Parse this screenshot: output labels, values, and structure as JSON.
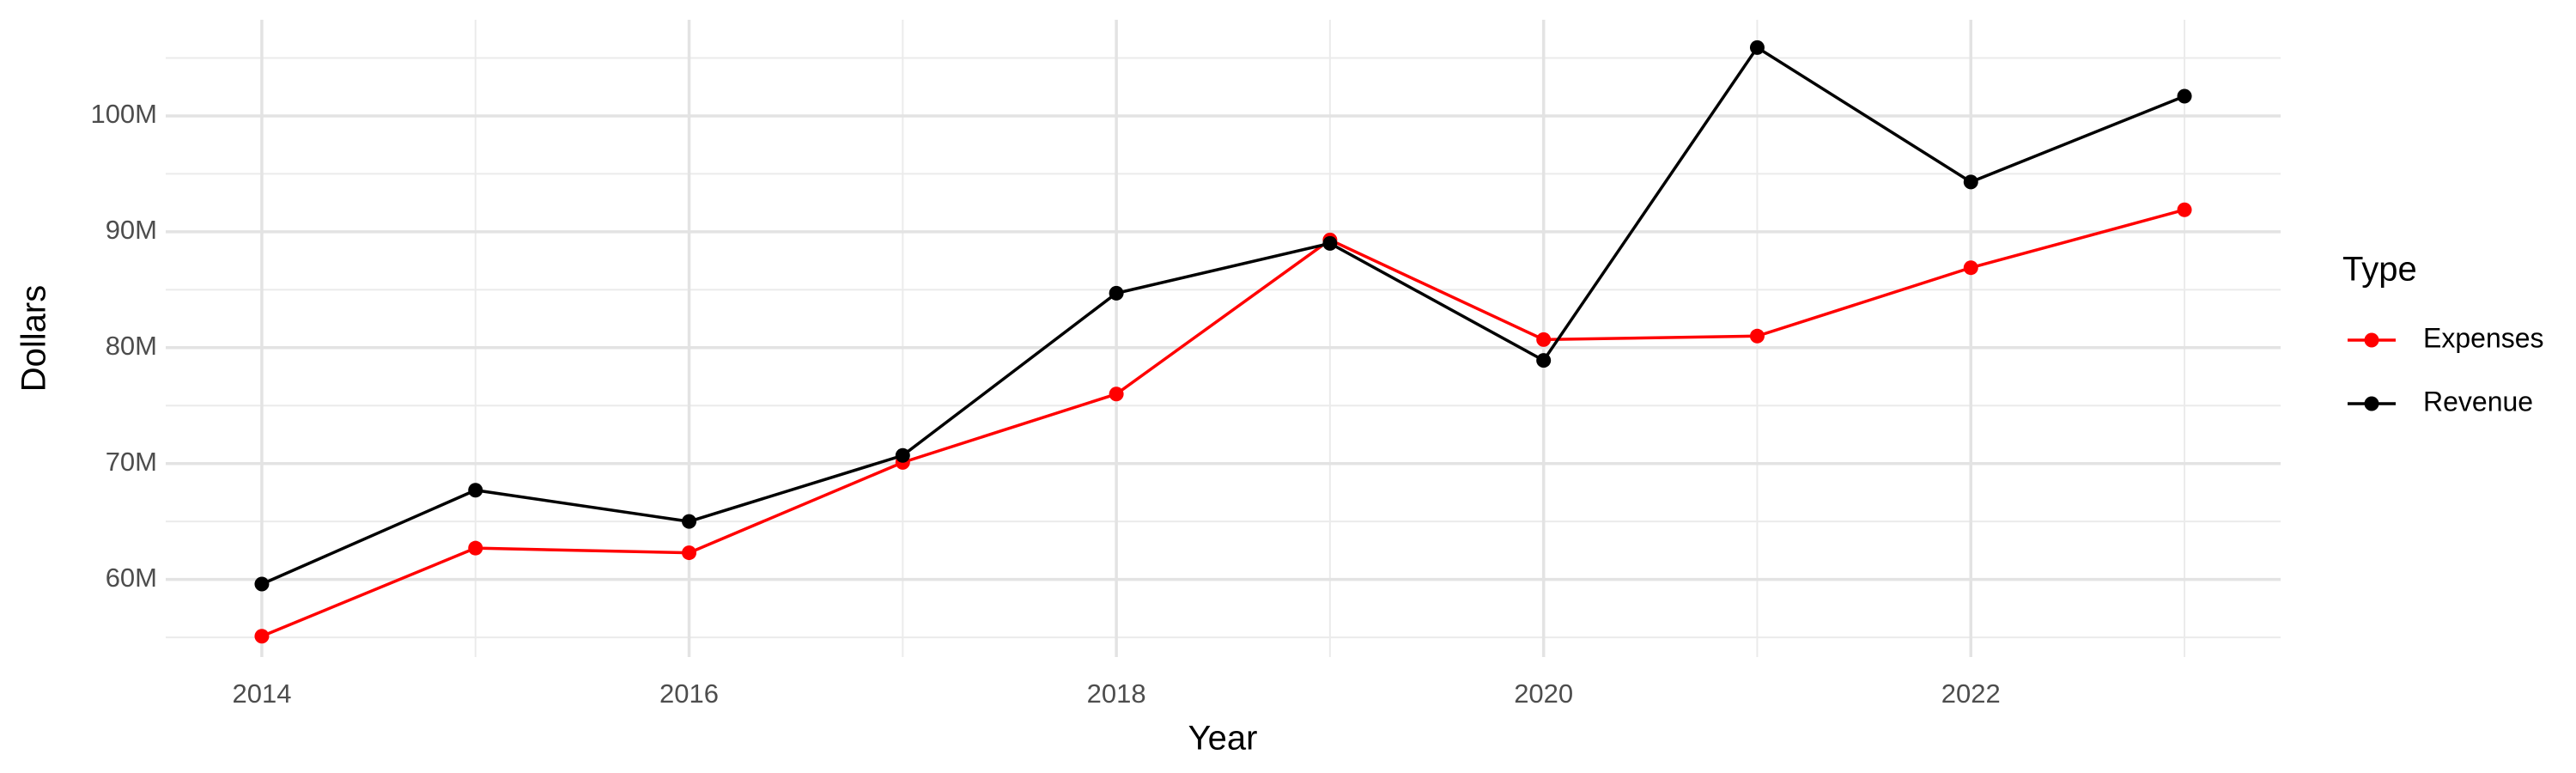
{
  "chart_data": {
    "type": "line",
    "x_label": "Year",
    "y_label": "Dollars",
    "legend_title": "Type",
    "legend_position": "right",
    "grid": true,
    "x": [
      2014,
      2015,
      2016,
      2017,
      2018,
      2019,
      2020,
      2021,
      2022,
      2023
    ],
    "xlim": [
      2013.55,
      2023.45
    ],
    "xticks": [
      2014,
      2016,
      2018,
      2020,
      2022
    ],
    "ylim": [
      53300000,
      108300000
    ],
    "yticks": [
      {
        "value": 60000000,
        "label": "60M"
      },
      {
        "value": 70000000,
        "label": "70M"
      },
      {
        "value": 80000000,
        "label": "80M"
      },
      {
        "value": 90000000,
        "label": "90M"
      },
      {
        "value": 100000000,
        "label": "100M"
      }
    ],
    "series": [
      {
        "name": "Expenses",
        "color": "#ff0000",
        "values": [
          55100000,
          62700000,
          62300000,
          70100000,
          76000000,
          89300000,
          80700000,
          81000000,
          86900000,
          91900000
        ]
      },
      {
        "name": "Revenue",
        "color": "#000000",
        "values": [
          59600000,
          67700000,
          65000000,
          70700000,
          84700000,
          89000000,
          78900000,
          105900000,
          94300000,
          101700000
        ]
      }
    ]
  }
}
